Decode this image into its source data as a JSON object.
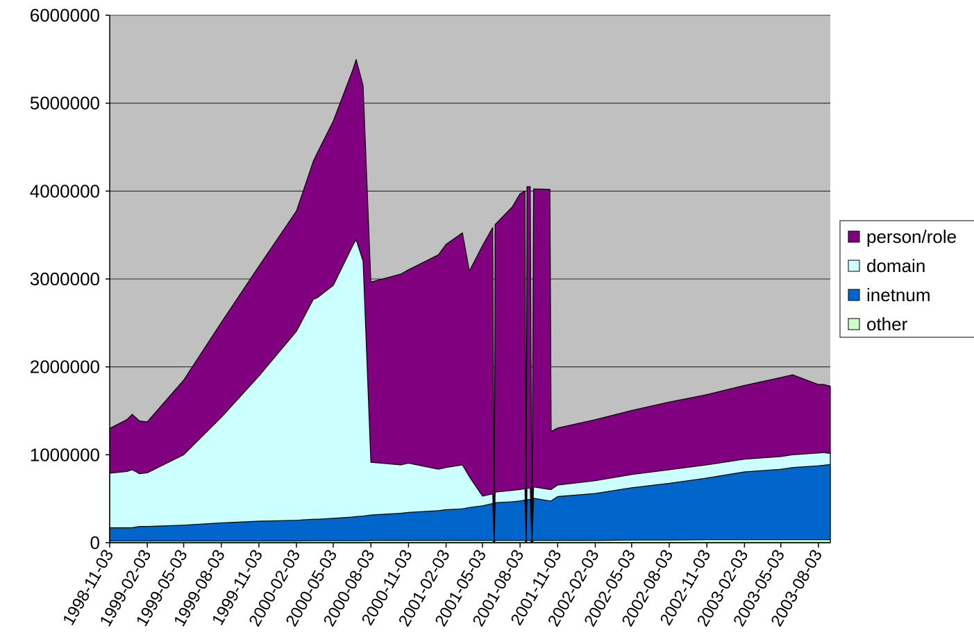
{
  "chart_data": {
    "type": "area",
    "stacked": true,
    "title": "",
    "xlabel": "",
    "ylabel": "",
    "ylim": [
      0,
      6000000
    ],
    "yticks": [
      "0",
      "1000000",
      "2000000",
      "3000000",
      "4000000",
      "5000000",
      "6000000"
    ],
    "xticks": [
      "1998-11-03",
      "1999-02-03",
      "1999-05-03",
      "1999-08-03",
      "1999-11-03",
      "2000-02-03",
      "2000-05-03",
      "2000-08-03",
      "2000-11-03",
      "2001-02-03",
      "2001-05-03",
      "2001-08-03",
      "2001-11-03",
      "2002-02-03",
      "2002-05-03",
      "2002-08-03",
      "2002-11-03",
      "2003-02-03",
      "2003-05-03",
      "2003-08-03"
    ],
    "x": [
      "1998-11-03",
      "1998-12-15",
      "1998-12-28",
      "1999-01-15",
      "1999-02-03",
      "1999-05-03",
      "1999-08-03",
      "1999-11-03",
      "2000-02-03",
      "2000-03-15",
      "2000-03-25",
      "2000-05-03",
      "2000-06-20",
      "2000-06-28",
      "2000-07-15",
      "2000-08-03",
      "2000-10-15",
      "2000-11-03",
      "2001-01-15",
      "2001-02-03",
      "2001-03-15",
      "2001-04-01",
      "2001-05-03",
      "2001-05-28",
      "2001-06-01",
      "2001-06-03",
      "2001-07-15",
      "2001-08-03",
      "2001-08-15",
      "2001-08-18",
      "2001-08-20",
      "2001-08-28",
      "2001-09-01",
      "2001-09-05",
      "2001-10-15",
      "2001-10-18",
      "2001-11-03",
      "2002-02-03",
      "2002-05-03",
      "2002-08-03",
      "2002-11-03",
      "2003-02-03",
      "2003-05-03",
      "2003-06-01",
      "2003-08-03",
      "2003-08-15",
      "2003-09-01"
    ],
    "series": [
      {
        "name": "other",
        "color": "#ccffcc",
        "values": [
          20000,
          20000,
          20000,
          20000,
          20000,
          20000,
          20000,
          20000,
          20000,
          22000,
          22000,
          22000,
          22000,
          22000,
          22000,
          25000,
          25000,
          25000,
          25000,
          25000,
          25000,
          25000,
          25000,
          25000,
          0,
          25000,
          25000,
          25000,
          25000,
          0,
          25000,
          25000,
          0,
          25000,
          25000,
          25000,
          25000,
          25000,
          30000,
          30000,
          35000,
          35000,
          35000,
          35000,
          35000,
          35000,
          35000
        ]
      },
      {
        "name": "inetnum",
        "color": "#0066cc",
        "values": [
          150000,
          150000,
          150000,
          165000,
          165000,
          180000,
          205000,
          225000,
          235000,
          245000,
          245000,
          255000,
          270000,
          275000,
          280000,
          290000,
          310000,
          320000,
          340000,
          350000,
          360000,
          375000,
          395000,
          420000,
          0,
          430000,
          440000,
          450000,
          460000,
          0,
          465000,
          465000,
          0,
          480000,
          450000,
          450000,
          500000,
          535000,
          595000,
          645000,
          700000,
          770000,
          800000,
          820000,
          840000,
          845000,
          855000
        ]
      },
      {
        "name": "domain",
        "color": "#ccffff",
        "values": [
          620000,
          640000,
          660000,
          600000,
          610000,
          800000,
          1200000,
          1650000,
          2150000,
          2500000,
          2520000,
          2650000,
          3090000,
          3150000,
          2900000,
          600000,
          550000,
          560000,
          470000,
          480000,
          500000,
          350000,
          110000,
          110000,
          0,
          120000,
          130000,
          130000,
          130000,
          0,
          130000,
          130000,
          0,
          130000,
          130000,
          130000,
          130000,
          145000,
          150000,
          155000,
          150000,
          145000,
          145000,
          145000,
          145000,
          145000,
          125000
        ]
      },
      {
        "name": "person/role",
        "color": "#800080",
        "values": [
          510000,
          590000,
          630000,
          600000,
          580000,
          850000,
          1080000,
          1250000,
          1370000,
          1570000,
          1650000,
          1870000,
          2000000,
          2050000,
          2000000,
          2050000,
          2170000,
          2200000,
          2440000,
          2540000,
          2640000,
          2340000,
          2850000,
          3030000,
          0,
          3045000,
          3225000,
          3365000,
          3385000,
          0,
          3430000,
          3430000,
          0,
          3390000,
          3415000,
          660000,
          650000,
          695000,
          730000,
          770000,
          800000,
          840000,
          900000,
          910000,
          780000,
          775000,
          765000
        ]
      }
    ],
    "grid": true,
    "legend_position": "right",
    "plot_background": "#c0c0c0"
  }
}
